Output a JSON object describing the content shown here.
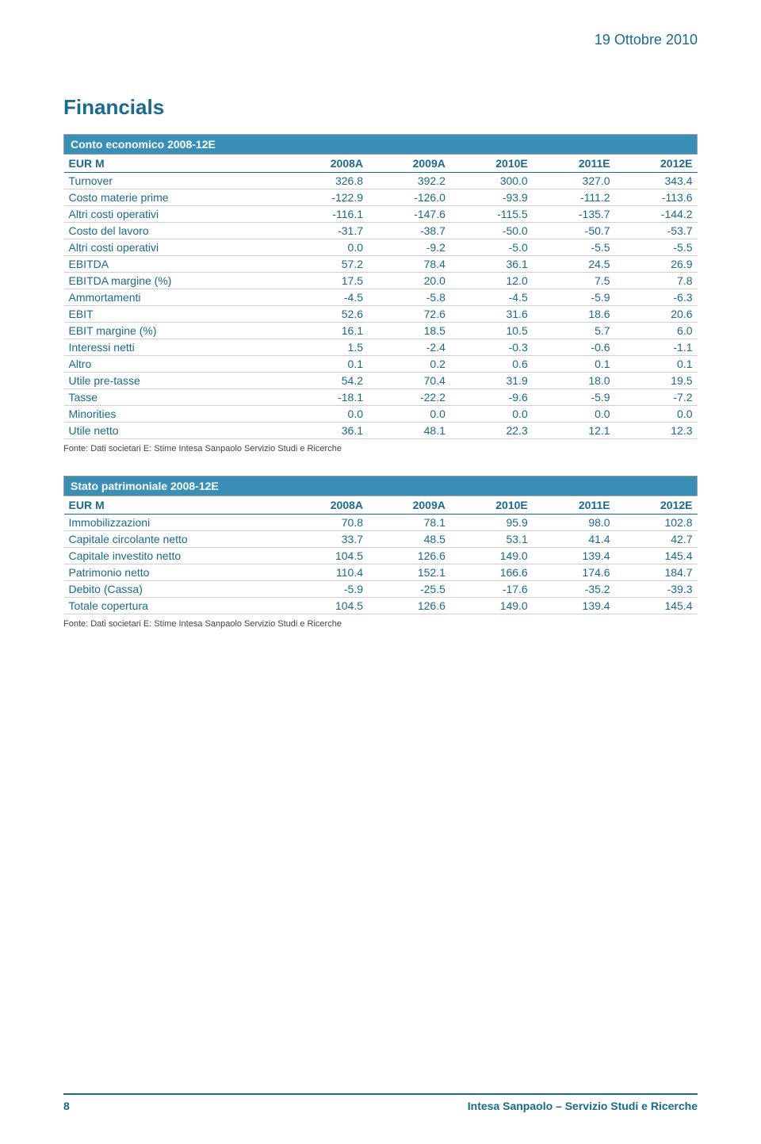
{
  "colors": {
    "brand": "#1b698f",
    "accent": "#3a8fb7",
    "text": "#333333",
    "row_border": "#d0d0d0"
  },
  "header": {
    "date": "19 Ottobre 2010"
  },
  "title": "Financials",
  "tables": [
    {
      "title": "Conto economico 2008-12E",
      "columns": [
        "EUR M",
        "2008A",
        "2009A",
        "2010E",
        "2011E",
        "2012E"
      ],
      "rows": [
        [
          "Turnover",
          "326.8",
          "392.2",
          "300.0",
          "327.0",
          "343.4"
        ],
        [
          "Costo materie prime",
          "-122.9",
          "-126.0",
          "-93.9",
          "-111.2",
          "-113.6"
        ],
        [
          "Altri costi operativi",
          "-116.1",
          "-147.6",
          "-115.5",
          "-135.7",
          "-144.2"
        ],
        [
          "Costo del lavoro",
          "-31.7",
          "-38.7",
          "-50.0",
          "-50.7",
          "-53.7"
        ],
        [
          "Altri costi operativi",
          "0.0",
          "-9.2",
          "-5.0",
          "-5.5",
          "-5.5"
        ],
        [
          "EBITDA",
          "57.2",
          "78.4",
          "36.1",
          "24.5",
          "26.9"
        ],
        [
          "EBITDA margine (%)",
          "17.5",
          "20.0",
          "12.0",
          "7.5",
          "7.8"
        ],
        [
          "Ammortamenti",
          "-4.5",
          "-5.8",
          "-4.5",
          "-5.9",
          "-6.3"
        ],
        [
          "EBIT",
          "52.6",
          "72.6",
          "31.6",
          "18.6",
          "20.6"
        ],
        [
          "EBIT margine (%)",
          "16.1",
          "18.5",
          "10.5",
          "5.7",
          "6.0"
        ],
        [
          "Interessi netti",
          "1.5",
          "-2.4",
          "-0.3",
          "-0.6",
          "-1.1"
        ],
        [
          "Altro",
          "0.1",
          "0.2",
          "0.6",
          "0.1",
          "0.1"
        ],
        [
          "Utile pre-tasse",
          "54.2",
          "70.4",
          "31.9",
          "18.0",
          "19.5"
        ],
        [
          "Tasse",
          "-18.1",
          "-22.2",
          "-9.6",
          "-5.9",
          "-7.2"
        ],
        [
          "Minorities",
          "0.0",
          "0.0",
          "0.0",
          "0.0",
          "0.0"
        ],
        [
          "Utile netto",
          "36.1",
          "48.1",
          "22.3",
          "12.1",
          "12.3"
        ]
      ],
      "source": "Fonte:  Dati societari  E: Stime Intesa Sanpaolo Servizio  Studi e Ricerche"
    },
    {
      "title": "Stato patrimoniale 2008-12E",
      "columns": [
        "EUR M",
        "2008A",
        "2009A",
        "2010E",
        "2011E",
        "2012E"
      ],
      "rows": [
        [
          "Immobilizzazioni",
          "70.8",
          "78.1",
          "95.9",
          "98.0",
          "102.8"
        ],
        [
          "Capitale circolante netto",
          "33.7",
          "48.5",
          "53.1",
          "41.4",
          "42.7"
        ],
        [
          "Capitale investito netto",
          "104.5",
          "126.6",
          "149.0",
          "139.4",
          "145.4"
        ],
        [
          "Patrimonio netto",
          "110.4",
          "152.1",
          "166.6",
          "174.6",
          "184.7"
        ],
        [
          "Debito (Cassa)",
          "-5.9",
          "-25.5",
          "-17.6",
          "-35.2",
          "-39.3"
        ],
        [
          "Totale copertura",
          "104.5",
          "126.6",
          "149.0",
          "139.4",
          "145.4"
        ]
      ],
      "source": "Fonte:  Dati societari  E: Stime Intesa Sanpaolo Servizio  Studi e Ricerche"
    }
  ],
  "footer": {
    "page_number": "8",
    "org": "Intesa Sanpaolo – Servizio Studi e Ricerche"
  }
}
